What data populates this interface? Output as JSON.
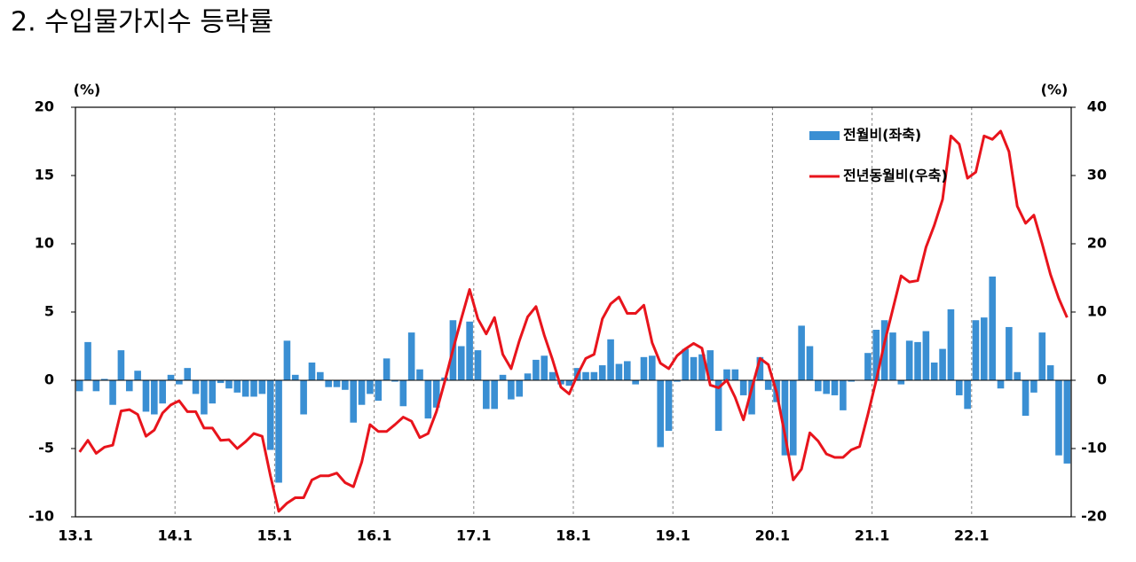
{
  "chart_data": {
    "type": "bar_line",
    "title": "2. 수입물가지수 등락률",
    "y_unit": "(%)",
    "y2_unit": "(%)",
    "categories": [
      "13.1",
      null,
      null,
      null,
      null,
      null,
      null,
      null,
      null,
      null,
      null,
      null,
      "14.1",
      null,
      null,
      null,
      null,
      null,
      null,
      null,
      null,
      null,
      null,
      null,
      "15.1",
      null,
      null,
      null,
      null,
      null,
      null,
      null,
      null,
      null,
      null,
      null,
      "16.1",
      null,
      null,
      null,
      null,
      null,
      null,
      null,
      null,
      null,
      null,
      null,
      "17.1",
      null,
      null,
      null,
      null,
      null,
      null,
      null,
      null,
      null,
      null,
      null,
      "18.1",
      null,
      null,
      null,
      null,
      null,
      null,
      null,
      null,
      null,
      null,
      null,
      "19.1",
      null,
      null,
      null,
      null,
      null,
      null,
      null,
      null,
      null,
      null,
      null,
      "20.1",
      null,
      null,
      null,
      null,
      null,
      null,
      null,
      null,
      null,
      null,
      null,
      "21.1",
      null,
      null,
      null,
      null,
      null,
      null,
      null,
      null,
      null,
      null,
      null,
      "22.1",
      null,
      null,
      null,
      null,
      null,
      null,
      null,
      null,
      null,
      null,
      null
    ],
    "series": [
      {
        "name": "전월비(좌축)",
        "type": "bar",
        "color": "#3a8fd3",
        "values": [
          -0.8,
          2.8,
          -0.8,
          0.1,
          -1.8,
          2.2,
          -0.8,
          0.7,
          -2.3,
          -2.5,
          -1.7,
          0.4,
          -0.3,
          0.9,
          -1.0,
          -2.5,
          -1.7,
          -0.2,
          -0.6,
          -0.9,
          -1.2,
          -1.2,
          -1.0,
          -5.1,
          -7.5,
          2.9,
          0.4,
          -2.5,
          1.3,
          0.6,
          -0.5,
          -0.5,
          -0.7,
          -3.1,
          -1.8,
          -1.0,
          -1.5,
          1.6,
          -0.1,
          -1.9,
          3.5,
          0.8,
          -2.8,
          -2.0,
          0.2,
          4.4,
          2.5,
          4.3,
          2.2,
          -2.1,
          -2.1,
          0.4,
          -1.4,
          -1.2,
          0.5,
          1.5,
          1.8,
          0.6,
          -0.3,
          -0.4,
          0.9,
          0.6,
          0.6,
          1.1,
          3.0,
          1.2,
          1.4,
          -0.3,
          1.7,
          1.8,
          -4.9,
          -3.7,
          -0.1,
          2.3,
          1.7,
          1.9,
          2.2,
          -3.7,
          0.8,
          0.8,
          -1.1,
          -2.5,
          1.7,
          -0.7,
          -1.6,
          -5.5,
          -5.5,
          4.0,
          2.5,
          -0.8,
          -1.0,
          -1.1,
          -2.2,
          -0.1,
          0.0,
          2.0,
          3.7,
          4.4,
          3.5,
          -0.3,
          2.9,
          2.8,
          3.6,
          1.3,
          2.3,
          5.2,
          -1.1,
          -2.1,
          4.4,
          4.6,
          7.6,
          -0.6,
          3.9,
          0.6,
          -2.6,
          -0.9,
          3.5,
          1.1,
          -5.5,
          -6.1
        ]
      },
      {
        "name": "전년동월비(우축)",
        "type": "line",
        "axis": "y2",
        "color": "#e8141c",
        "values": [
          -10.5,
          -8.8,
          -10.7,
          -9.8,
          -9.5,
          -4.5,
          -4.3,
          -5.0,
          -8.2,
          -7.3,
          -4.8,
          -3.6,
          -3.0,
          -4.6,
          -4.6,
          -7.0,
          -7.0,
          -8.8,
          -8.7,
          -10.0,
          -9.0,
          -7.8,
          -8.2,
          -14.0,
          -19.2,
          -18.0,
          -17.2,
          -17.2,
          -14.6,
          -14.0,
          -14.0,
          -13.6,
          -15.0,
          -15.6,
          -12.0,
          -6.5,
          -7.5,
          -7.5,
          -6.5,
          -5.4,
          -6.0,
          -8.4,
          -7.8,
          -4.6,
          -0.2,
          4.5,
          9.0,
          13.3,
          9.0,
          6.8,
          9.2,
          3.8,
          1.7,
          5.8,
          9.3,
          10.8,
          6.6,
          3.0,
          -1.0,
          -2.0,
          0.8,
          3.2,
          3.8,
          9.0,
          11.2,
          12.2,
          9.8,
          9.8,
          11.0,
          5.5,
          2.5,
          1.7,
          3.6,
          4.6,
          5.4,
          4.7,
          -0.7,
          -1.1,
          0.0,
          -2.5,
          -5.8,
          -1.2,
          3.2,
          2.3,
          -1.8,
          -8.0,
          -14.6,
          -13.0,
          -7.7,
          -8.9,
          -10.8,
          -11.3,
          -11.3,
          -10.2,
          -9.7,
          -5.0,
          0.0,
          5.5,
          10.4,
          15.3,
          14.4,
          14.6,
          19.5,
          22.7,
          26.5,
          35.8,
          34.6,
          29.6,
          30.5,
          35.8,
          35.3,
          36.5,
          33.5,
          25.5,
          23.0,
          24.2,
          20.0,
          15.5,
          12.0,
          9.2
        ]
      }
    ],
    "ylim": [
      -10,
      20
    ],
    "yticks": [
      -10,
      -5,
      0,
      5,
      10,
      15,
      20
    ],
    "y2lim": [
      -20,
      40
    ],
    "y2ticks": [
      -20,
      -10,
      0,
      10,
      20,
      30,
      40
    ],
    "legend": "upper right"
  }
}
